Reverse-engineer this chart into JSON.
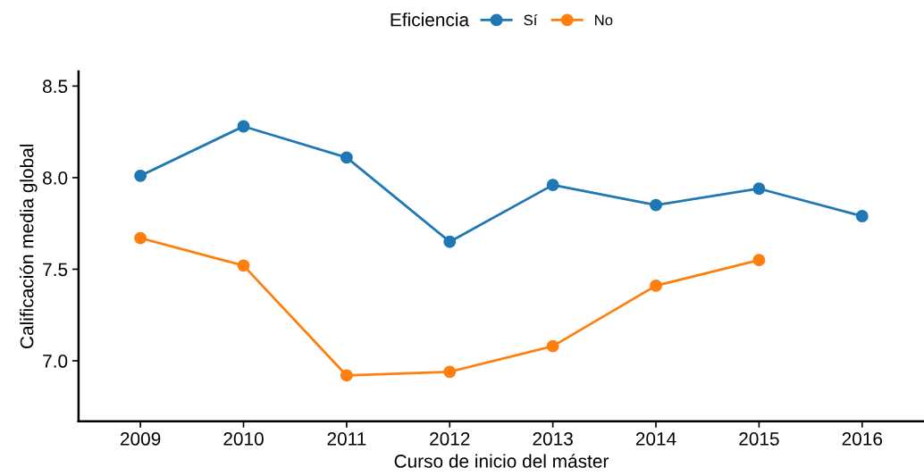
{
  "chart_data": {
    "type": "line",
    "xlabel": "Curso de inicio del máster",
    "ylabel": "Calificación media global",
    "legend_title": "Eficiencia",
    "legend": "top",
    "marker": "circle",
    "line_style": "solid",
    "grid": false,
    "categories": [
      "2009",
      "2010",
      "2011",
      "2012",
      "2013",
      "2014",
      "2015",
      "2016"
    ],
    "series": [
      {
        "name": "Sí",
        "color": "#1f77b4",
        "values": [
          8.01,
          8.28,
          8.11,
          7.65,
          7.96,
          7.85,
          7.94,
          7.79
        ]
      },
      {
        "name": "No",
        "color": "#ff7f0e",
        "values": [
          7.67,
          7.52,
          6.92,
          6.94,
          7.08,
          7.41,
          7.55,
          null
        ]
      }
    ],
    "ylim": [
      6.67,
      8.58
    ],
    "yticks": [
      {
        "value": 7.0,
        "label": "7.0"
      },
      {
        "value": 7.5,
        "label": "7.5"
      },
      {
        "value": 8.0,
        "label": "8.0"
      },
      {
        "value": 8.5,
        "label": "8.5"
      }
    ]
  }
}
